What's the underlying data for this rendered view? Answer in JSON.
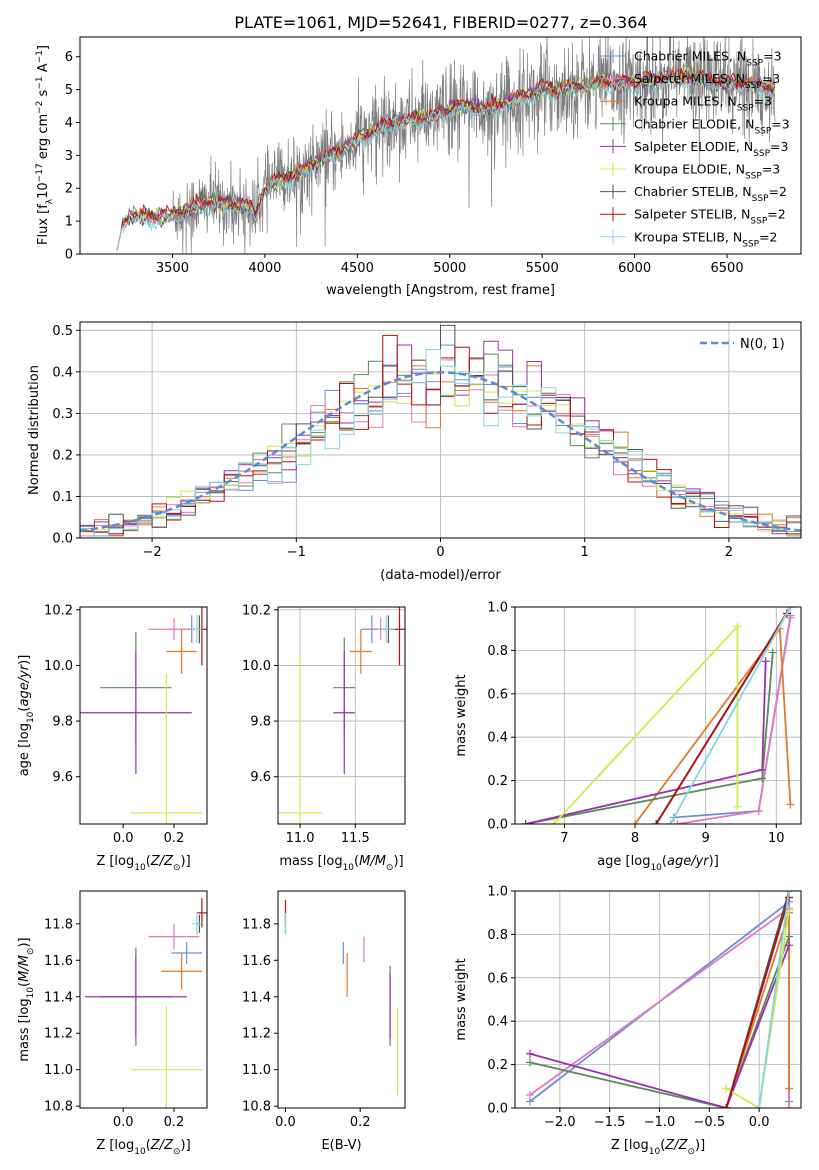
{
  "figure": {
    "title": "PLATE=1061, MJD=52641, FIBERID=0277, z=0.364"
  },
  "model_colors": {
    "Chabrier MILES": "#6b8fd6",
    "Salpeter MILES": "#e377c2",
    "Kroupa MILES": "#e07b2a",
    "Chabrier ELODIE": "#5b8a5b",
    "Salpeter ELODIE": "#9b30b0",
    "Kroupa ELODIE": "#d4e84a",
    "Chabrier STELIB": "#555555",
    "Salpeter STELIB": "#b01010",
    "Kroupa STELIB": "#80d8e0",
    "data": "#808080",
    "gauss": "#5b8ad6"
  },
  "chart_data": [
    {
      "id": "spectrum",
      "type": "line",
      "xlabel": "wavelength [Angstrom, rest frame]",
      "ylabel_parts": [
        "Flux [f",
        "λ",
        "10",
        "−17",
        " erg cm",
        "−2",
        " s",
        "−1",
        " A",
        "−1",
        "]"
      ],
      "xlim": [
        3000,
        6900
      ],
      "ylim": [
        0,
        6.6
      ],
      "xticks": [
        3500,
        4000,
        4500,
        5000,
        5500,
        6000,
        6500
      ],
      "yticks": [
        0,
        1,
        2,
        3,
        4,
        5,
        6
      ],
      "data_range": [
        3500,
        6760
      ],
      "model_range": [
        3200,
        6760
      ],
      "legend": [
        {
          "pre": "Chabrier MILES, N",
          "sub": "SSP",
          "post": "=3",
          "key": "Chabrier MILES"
        },
        {
          "pre": "Salpeter MILES, N",
          "sub": "SSP",
          "post": "=3",
          "key": "Salpeter MILES"
        },
        {
          "pre": "Kroupa MILES, N",
          "sub": "SSP",
          "post": "=3",
          "key": "Kroupa MILES"
        },
        {
          "pre": "Chabrier ELODIE, N",
          "sub": "SSP",
          "post": "=3",
          "key": "Chabrier ELODIE"
        },
        {
          "pre": "Salpeter ELODIE, N",
          "sub": "SSP",
          "post": "=3",
          "key": "Salpeter ELODIE"
        },
        {
          "pre": "Kroupa ELODIE, N",
          "sub": "SSP",
          "post": "=3",
          "key": "Kroupa ELODIE"
        },
        {
          "pre": "Chabrier STELIB, N",
          "sub": "SSP",
          "post": "=2",
          "key": "Chabrier STELIB"
        },
        {
          "pre": "Salpeter STELIB, N",
          "sub": "SSP",
          "post": "=2",
          "key": "Salpeter STELIB"
        },
        {
          "pre": "Kroupa STELIB, N",
          "sub": "SSP",
          "post": "=2",
          "key": "Kroupa STELIB"
        }
      ],
      "continuum": [
        [
          3200,
          0.9
        ],
        [
          3300,
          1.2
        ],
        [
          3400,
          1.1
        ],
        [
          3500,
          1.2
        ],
        [
          3600,
          1.4
        ],
        [
          3700,
          1.6
        ],
        [
          3800,
          1.5
        ],
        [
          3900,
          1.5
        ],
        [
          3950,
          1.2
        ],
        [
          4000,
          2.0
        ],
        [
          4100,
          2.3
        ],
        [
          4200,
          2.5
        ],
        [
          4300,
          2.9
        ],
        [
          4400,
          3.1
        ],
        [
          4500,
          3.5
        ],
        [
          4600,
          3.8
        ],
        [
          4700,
          4.0
        ],
        [
          4800,
          4.1
        ],
        [
          4900,
          4.2
        ],
        [
          5000,
          4.4
        ],
        [
          5100,
          4.5
        ],
        [
          5200,
          4.4
        ],
        [
          5300,
          4.6
        ],
        [
          5400,
          4.8
        ],
        [
          5500,
          5.0
        ],
        [
          5600,
          5.0
        ],
        [
          5700,
          5.1
        ],
        [
          5800,
          5.2
        ],
        [
          5900,
          5.2
        ],
        [
          6000,
          5.2
        ],
        [
          6100,
          5.3
        ],
        [
          6200,
          5.4
        ],
        [
          6300,
          5.4
        ],
        [
          6400,
          5.3
        ],
        [
          6500,
          5.2
        ],
        [
          6600,
          5.2
        ],
        [
          6760,
          5.0
        ]
      ]
    },
    {
      "id": "residuals",
      "type": "histogram",
      "xlabel": "(data-model)/error",
      "ylabel": "Normed distribution",
      "xlim": [
        -2.5,
        2.5
      ],
      "ylim": [
        0,
        0.52
      ],
      "xticks": [
        -2,
        -1,
        0,
        1,
        2
      ],
      "yticks": [
        0,
        0.1,
        0.2,
        0.3,
        0.4,
        0.5
      ],
      "legend_label": "N(0, 1)",
      "bin_width": 0.1
    },
    {
      "id": "age_vs_Z",
      "type": "errorbar",
      "xlabel": "Z [log10(Z/Z⊙)]",
      "ylabel": "age  [log10(age/yr)]",
      "xlim": [
        -0.17,
        0.33
      ],
      "ylim": [
        9.43,
        10.21
      ],
      "xticks": [
        0.0,
        0.2
      ],
      "yticks": [
        9.6,
        9.8,
        10.0,
        10.2
      ],
      "points": [
        {
          "key": "Chabrier MILES",
          "x": 0.27,
          "y": 10.13,
          "xe": 0.03,
          "ye": 0.05
        },
        {
          "key": "Salpeter MILES",
          "x": 0.2,
          "y": 10.13,
          "xe": 0.1,
          "ye": 0.04
        },
        {
          "key": "Kroupa MILES",
          "x": 0.23,
          "y": 10.05,
          "xe": 0.06,
          "ye": 0.08
        },
        {
          "key": "Chabrier ELODIE",
          "x": 0.05,
          "y": 9.92,
          "xe": 0.14,
          "ye": 0.2
        },
        {
          "key": "Salpeter ELODIE",
          "x": 0.05,
          "y": 9.83,
          "xe": 0.22,
          "ye": 0.22
        },
        {
          "key": "Kroupa ELODIE",
          "x": 0.17,
          "y": 9.47,
          "xe": 0.14,
          "ye": 0.5
        },
        {
          "key": "Chabrier STELIB",
          "x": 0.3,
          "y": 10.13,
          "xe": 0.01,
          "ye": 0.05
        },
        {
          "key": "Salpeter STELIB",
          "x": 0.31,
          "y": 10.13,
          "xe": 0.02,
          "ye": 0.13
        },
        {
          "key": "Kroupa STELIB",
          "x": 0.29,
          "y": 10.13,
          "xe": 0.02,
          "ye": 0.05
        }
      ]
    },
    {
      "id": "age_vs_mass",
      "type": "errorbar",
      "xlabel": "mass [log10(M/M⊙)]",
      "ylabel": "",
      "xlim": [
        10.8,
        11.95
      ],
      "ylim": [
        9.43,
        10.21
      ],
      "xticks": [
        11.0,
        11.5
      ],
      "yticks": [
        9.6,
        9.8,
        10.0,
        10.2
      ],
      "points": [
        {
          "key": "Chabrier MILES",
          "x": 11.65,
          "y": 10.13,
          "xe": 0.1,
          "ye": 0.05
        },
        {
          "key": "Salpeter MILES",
          "x": 11.73,
          "y": 10.13,
          "xe": 0.13,
          "ye": 0.04
        },
        {
          "key": "Kroupa MILES",
          "x": 11.55,
          "y": 10.05,
          "xe": 0.1,
          "ye": 0.08
        },
        {
          "key": "Chabrier ELODIE",
          "x": 11.4,
          "y": 9.92,
          "xe": 0.1,
          "ye": 0.18
        },
        {
          "key": "Salpeter ELODIE",
          "x": 11.4,
          "y": 9.83,
          "xe": 0.1,
          "ye": 0.22
        },
        {
          "key": "Kroupa ELODIE",
          "x": 11.0,
          "y": 9.47,
          "xe": 0.2,
          "ye": 0.57
        },
        {
          "key": "Chabrier STELIB",
          "x": 11.8,
          "y": 10.13,
          "xe": 0.07,
          "ye": 0.05
        },
        {
          "key": "Salpeter STELIB",
          "x": 11.9,
          "y": 10.13,
          "xe": 0.1,
          "ye": 0.13
        },
        {
          "key": "Kroupa STELIB",
          "x": 11.78,
          "y": 10.13,
          "xe": 0.08,
          "ye": 0.05
        }
      ]
    },
    {
      "id": "weight_vs_age",
      "type": "line",
      "xlabel": "age  [log10(age/yr)]",
      "ylabel": "mass weight",
      "xlim": [
        6.3,
        10.35
      ],
      "ylim": [
        0,
        1
      ],
      "xticks": [
        7,
        8,
        9,
        10
      ],
      "yticks": [
        0.0,
        0.2,
        0.4,
        0.6,
        0.8,
        1.0
      ],
      "series": [
        {
          "key": "Chabrier MILES",
          "x": [
            8.55,
            9.75,
            10.2
          ],
          "y": [
            0.03,
            0.06,
            0.96
          ]
        },
        {
          "key": "Salpeter MILES",
          "x": [
            8.6,
            9.75,
            10.2
          ],
          "y": [
            0.0,
            0.06,
            0.95
          ]
        },
        {
          "key": "Kroupa MILES",
          "x": [
            8.0,
            10.05,
            10.2
          ],
          "y": [
            0.0,
            0.9,
            0.09
          ]
        },
        {
          "key": "Chabrier ELODIE",
          "x": [
            6.45,
            9.8,
            9.95
          ],
          "y": [
            0.0,
            0.21,
            0.79
          ]
        },
        {
          "key": "Salpeter ELODIE",
          "x": [
            6.45,
            9.8,
            9.85
          ],
          "y": [
            0.0,
            0.25,
            0.75
          ]
        },
        {
          "key": "Kroupa ELODIE",
          "x": [
            6.85,
            9.45,
            9.45
          ],
          "y": [
            0.0,
            0.91,
            0.08
          ]
        },
        {
          "key": "Chabrier STELIB",
          "x": [
            8.3,
            10.2
          ],
          "y": [
            0.0,
            1.0
          ]
        },
        {
          "key": "Salpeter STELIB",
          "x": [
            8.3,
            10.15
          ],
          "y": [
            0.0,
            0.97
          ]
        },
        {
          "key": "Kroupa STELIB",
          "x": [
            8.5,
            10.2
          ],
          "y": [
            0.0,
            1.0
          ]
        }
      ]
    },
    {
      "id": "mass_vs_Z",
      "type": "errorbar",
      "xlabel": "Z [log10(Z/Z⊙)]",
      "ylabel": "mass [log10(M/M⊙)]",
      "xlim": [
        -0.17,
        0.33
      ],
      "ylim": [
        10.79,
        11.98
      ],
      "xticks": [
        0.0,
        0.2
      ],
      "yticks": [
        10.8,
        11.0,
        11.2,
        11.4,
        11.6,
        11.8
      ],
      "points": [
        {
          "key": "Chabrier MILES",
          "x": 0.25,
          "y": 11.64,
          "xe": 0.06,
          "ye": 0.06
        },
        {
          "key": "Salpeter MILES",
          "x": 0.2,
          "y": 11.73,
          "xe": 0.1,
          "ye": 0.07
        },
        {
          "key": "Kroupa MILES",
          "x": 0.23,
          "y": 11.54,
          "xe": 0.08,
          "ye": 0.1
        },
        {
          "key": "Chabrier ELODIE",
          "x": 0.05,
          "y": 11.4,
          "xe": 0.14,
          "ye": 0.27
        },
        {
          "key": "Salpeter ELODIE",
          "x": 0.05,
          "y": 11.4,
          "xe": 0.2,
          "ye": 0.22
        },
        {
          "key": "Kroupa ELODIE",
          "x": 0.17,
          "y": 11.0,
          "xe": 0.14,
          "ye": 0.35
        },
        {
          "key": "Chabrier STELIB",
          "x": 0.3,
          "y": 11.8,
          "xe": 0.01,
          "ye": 0.05
        },
        {
          "key": "Salpeter STELIB",
          "x": 0.31,
          "y": 11.86,
          "xe": 0.02,
          "ye": 0.08
        },
        {
          "key": "Kroupa STELIB",
          "x": 0.29,
          "y": 11.8,
          "xe": 0.02,
          "ye": 0.06
        }
      ]
    },
    {
      "id": "mass_vs_ebv",
      "type": "errorbar",
      "xlabel": "E(B-V)",
      "ylabel": "",
      "xlim": [
        -0.02,
        0.32
      ],
      "ylim": [
        10.79,
        11.98
      ],
      "xticks": [
        0.0,
        0.2
      ],
      "yticks": [
        10.8,
        11.0,
        11.2,
        11.4,
        11.6,
        11.8
      ],
      "points": [
        {
          "key": "Chabrier MILES",
          "x": 0.155,
          "y": 11.64,
          "xe": 0,
          "ye": 0.06
        },
        {
          "key": "Salpeter MILES",
          "x": 0.21,
          "y": 11.66,
          "xe": 0,
          "ye": 0.07
        },
        {
          "key": "Kroupa MILES",
          "x": 0.165,
          "y": 11.52,
          "xe": 0,
          "ye": 0.12
        },
        {
          "key": "Chabrier ELODIE",
          "x": 0.28,
          "y": 11.35,
          "xe": 0,
          "ye": 0.22
        },
        {
          "key": "Salpeter ELODIE",
          "x": 0.28,
          "y": 11.35,
          "xe": 0,
          "ye": 0.18
        },
        {
          "key": "Kroupa ELODIE",
          "x": 0.3,
          "y": 11.1,
          "xe": 0,
          "ye": 0.24
        },
        {
          "key": "Chabrier STELIB",
          "x": 0.0,
          "y": 11.8,
          "xe": 0,
          "ye": 0.05
        },
        {
          "key": "Salpeter STELIB",
          "x": 0.0,
          "y": 11.86,
          "xe": 0,
          "ye": 0.07
        },
        {
          "key": "Kroupa STELIB",
          "x": 0.0,
          "y": 11.8,
          "xe": 0,
          "ye": 0.06
        }
      ]
    },
    {
      "id": "weight_vs_Z",
      "type": "line",
      "xlabel": "Z [log10(Z/Z⊙)]",
      "ylabel": "mass weight",
      "xlim": [
        -2.45,
        0.42
      ],
      "ylim": [
        0,
        1
      ],
      "xticks": [
        -2.0,
        -1.5,
        -1.0,
        -0.5,
        0.0
      ],
      "yticks": [
        0.0,
        0.2,
        0.4,
        0.6,
        0.8,
        1.0
      ],
      "series": [
        {
          "key": "Chabrier MILES",
          "x": [
            -2.3,
            0.3,
            0.3
          ],
          "y": [
            0.03,
            0.95,
            0.03
          ]
        },
        {
          "key": "Salpeter MILES",
          "x": [
            -2.3,
            0.3,
            0.3
          ],
          "y": [
            0.06,
            0.92,
            0.0
          ]
        },
        {
          "key": "Kroupa MILES",
          "x": [
            -0.33,
            0.3,
            0.3
          ],
          "y": [
            0.0,
            0.9,
            0.09
          ]
        },
        {
          "key": "Chabrier ELODIE",
          "x": [
            -2.3,
            -0.33,
            0.3
          ],
          "y": [
            0.21,
            0.0,
            0.79
          ]
        },
        {
          "key": "Salpeter ELODIE",
          "x": [
            -2.3,
            -0.33,
            0.3
          ],
          "y": [
            0.25,
            0.0,
            0.75
          ]
        },
        {
          "key": "Kroupa ELODIE",
          "x": [
            -0.33,
            0.0,
            0.3
          ],
          "y": [
            0.09,
            0.0,
            0.91
          ]
        },
        {
          "key": "Chabrier STELIB",
          "x": [
            -0.33,
            0.3
          ],
          "y": [
            0.0,
            1.0
          ]
        },
        {
          "key": "Salpeter STELIB",
          "x": [
            -0.33,
            0.3
          ],
          "y": [
            0.0,
            0.97
          ]
        },
        {
          "key": "Kroupa STELIB",
          "x": [
            0.0,
            0.3
          ],
          "y": [
            0.0,
            1.0
          ]
        }
      ]
    }
  ]
}
